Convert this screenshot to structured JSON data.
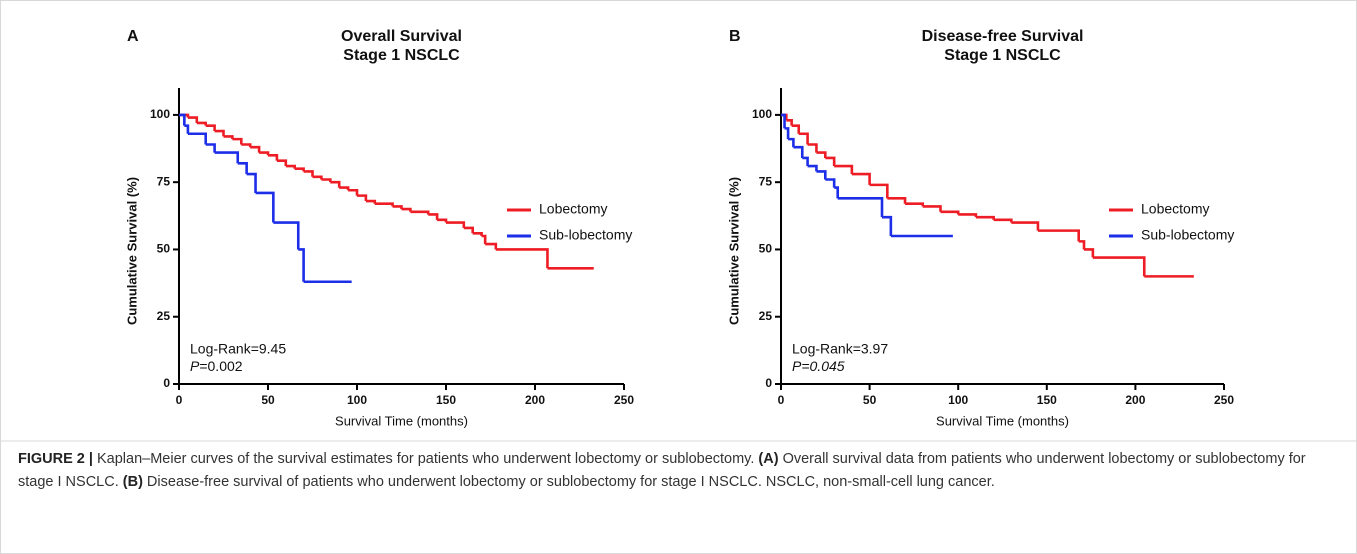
{
  "chart_data": [
    {
      "type": "line",
      "panel": "A",
      "title": [
        "Overall Survival",
        "Stage 1 NSCLC"
      ],
      "x_label": "Survival Time (months)",
      "y_label": "Cumulative Survival (%)",
      "xlim": [
        0,
        250
      ],
      "xticks": [
        0,
        50,
        100,
        150,
        200,
        250
      ],
      "ylim": [
        0,
        110
      ],
      "yticks": [
        0,
        25,
        50,
        75,
        100
      ],
      "step": true,
      "stat_label": "Log-Rank=9.45",
      "p_label": "P",
      "p_value": "=0.002",
      "p_italic_value": false,
      "series": [
        {
          "name": "Lobectomy",
          "color": "#ee1c24",
          "x": [
            0,
            5,
            10,
            15,
            20,
            25,
            30,
            35,
            40,
            45,
            50,
            55,
            60,
            65,
            70,
            75,
            80,
            85,
            90,
            95,
            100,
            105,
            110,
            120,
            125,
            130,
            140,
            145,
            150,
            160,
            165,
            170,
            172,
            178,
            207,
            233
          ],
          "values": [
            100,
            99,
            97,
            96,
            94,
            92,
            91,
            89,
            88,
            86,
            85,
            83,
            81,
            80,
            79,
            77,
            76,
            75,
            73,
            72,
            70,
            68,
            67,
            66,
            65,
            64,
            63,
            61,
            60,
            58,
            56,
            55,
            52,
            50,
            43,
            43
          ]
        },
        {
          "name": "Sub-lobectomy",
          "color": "#1c2ee8",
          "x": [
            0,
            3,
            5,
            15,
            20,
            33,
            38,
            43,
            53,
            67,
            70,
            97
          ],
          "values": [
            100,
            96,
            93,
            89,
            86,
            82,
            78,
            71,
            60,
            50,
            38,
            38
          ]
        }
      ]
    },
    {
      "type": "line",
      "panel": "B",
      "title": [
        "Disease-free Survival",
        "Stage 1 NSCLC"
      ],
      "x_label": "Survival Time (months)",
      "y_label": "Cumulative Survival (%)",
      "xlim": [
        0,
        250
      ],
      "xticks": [
        0,
        50,
        100,
        150,
        200,
        250
      ],
      "ylim": [
        0,
        110
      ],
      "yticks": [
        0,
        25,
        50,
        75,
        100
      ],
      "step": true,
      "stat_label": "Log-Rank=3.97",
      "p_label": "P",
      "p_value": "=0.045",
      "p_italic_value": true,
      "series": [
        {
          "name": "Lobectomy",
          "color": "#ee1c24",
          "x": [
            0,
            3,
            6,
            10,
            15,
            20,
            25,
            30,
            40,
            50,
            60,
            70,
            80,
            90,
            100,
            110,
            120,
            130,
            145,
            165,
            168,
            171,
            176,
            205,
            233
          ],
          "values": [
            100,
            98,
            96,
            93,
            89,
            86,
            84,
            81,
            78,
            74,
            69,
            67,
            66,
            64,
            63,
            62,
            61,
            60,
            57,
            57,
            53,
            50,
            47,
            40,
            40
          ]
        },
        {
          "name": "Sub-lobectomy",
          "color": "#1c2ee8",
          "x": [
            0,
            2,
            4,
            7,
            12,
            15,
            20,
            25,
            30,
            32,
            57,
            62,
            97
          ],
          "values": [
            100,
            95,
            91,
            88,
            84,
            81,
            79,
            76,
            73,
            69,
            62,
            55,
            55
          ]
        }
      ]
    }
  ],
  "caption": {
    "parts": [
      {
        "text": "FIGURE 2 |",
        "bold": true
      },
      {
        "text": " Kaplan–Meier curves of the survival estimates for patients who underwent lobectomy or sublobectomy. ",
        "bold": false
      },
      {
        "text": "(A)",
        "bold": true
      },
      {
        "text": " Overall survival data from patients who underwent lobectomy or sublobectomy for stage I NSCLC. ",
        "bold": false
      },
      {
        "text": "(B)",
        "bold": true
      },
      {
        "text": " Disease-free survival of patients who underwent lobectomy or sublobectomy for stage I NSCLC. NSCLC, non-small-cell lung cancer.",
        "bold": false
      }
    ]
  }
}
